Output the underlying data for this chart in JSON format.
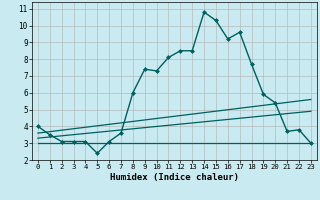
{
  "xlabel": "Humidex (Indice chaleur)",
  "bg_color": "#c8eaf0",
  "grid_color": "#b0b0b0",
  "line_color": "#006060",
  "xlim": [
    -0.5,
    23.5
  ],
  "ylim": [
    2,
    11.4
  ],
  "xticks": [
    0,
    1,
    2,
    3,
    4,
    5,
    6,
    7,
    8,
    9,
    10,
    11,
    12,
    13,
    14,
    15,
    16,
    17,
    18,
    19,
    20,
    21,
    22,
    23
  ],
  "yticks": [
    2,
    3,
    4,
    5,
    6,
    7,
    8,
    9,
    10,
    11
  ],
  "curve1_x": [
    0,
    1,
    2,
    3,
    4,
    5,
    6,
    7,
    8,
    9,
    10,
    11,
    12,
    13,
    14,
    15,
    16,
    17,
    18,
    19,
    20,
    21,
    22,
    23
  ],
  "curve1_y": [
    4.0,
    3.5,
    3.1,
    3.1,
    3.1,
    2.4,
    3.1,
    3.6,
    6.0,
    7.4,
    7.3,
    8.1,
    8.5,
    8.5,
    10.8,
    10.3,
    9.2,
    9.6,
    7.7,
    5.9,
    5.4,
    3.7,
    3.8,
    3.0
  ],
  "line1_x": [
    0,
    23
  ],
  "line1_y": [
    3.6,
    5.6
  ],
  "line2_x": [
    0,
    23
  ],
  "line2_y": [
    3.3,
    4.9
  ],
  "line3_x": [
    0,
    23
  ],
  "line3_y": [
    3.0,
    3.0
  ]
}
